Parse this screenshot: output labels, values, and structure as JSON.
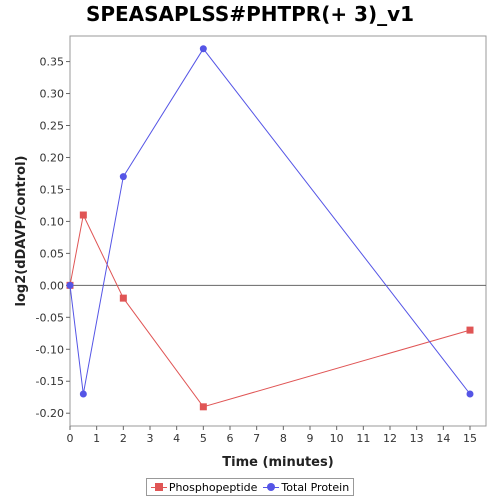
{
  "chart_data": {
    "type": "line",
    "title": "SPEASAPLSS#PHTPR(+ 3)_v1",
    "xlabel": "Time (minutes)",
    "ylabel": "log2(dDAVP/Control)",
    "xlim": [
      0,
      15.6
    ],
    "ylim": [
      -0.22,
      0.39
    ],
    "xticks": [
      0,
      1,
      2,
      3,
      4,
      5,
      6,
      7,
      8,
      9,
      10,
      11,
      12,
      13,
      14,
      15
    ],
    "yticks": [
      -0.2,
      -0.15,
      -0.1,
      -0.05,
      0.0,
      0.05,
      0.1,
      0.15,
      0.2,
      0.25,
      0.3,
      0.35
    ],
    "ytick_labels": [
      "-0.20",
      "-0.15",
      "-0.10",
      "-0.05",
      "0.00",
      "0.05",
      "0.10",
      "0.15",
      "0.20",
      "0.25",
      "0.30",
      "0.35"
    ],
    "zero_line": true,
    "grid": false,
    "legend_position": "bottom-center",
    "series": [
      {
        "name": "Phosphopeptide",
        "color": "#e05555",
        "marker": "square",
        "x": [
          0,
          0.5,
          2,
          5,
          15
        ],
        "y": [
          0.0,
          0.11,
          -0.02,
          -0.19,
          -0.07
        ]
      },
      {
        "name": "Total Protein",
        "color": "#5555e6",
        "marker": "circle",
        "x": [
          0,
          0.5,
          2,
          5,
          15
        ],
        "y": [
          0.0,
          -0.17,
          0.17,
          0.37,
          -0.17
        ]
      }
    ]
  }
}
